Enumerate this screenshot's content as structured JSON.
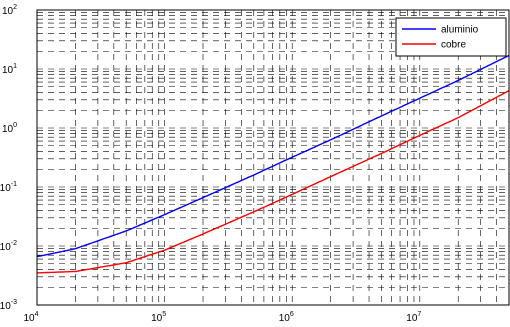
{
  "chart_data": {
    "type": "line",
    "xscale": "log",
    "yscale": "log",
    "xlim": [
      10000,
      50000000
    ],
    "ylim": [
      0.001,
      100
    ],
    "grid": true,
    "legend_position": "top-right",
    "x_ticks": [
      {
        "value": 10000,
        "base": "10",
        "exp": "4"
      },
      {
        "value": 100000,
        "base": "10",
        "exp": "5"
      },
      {
        "value": 1000000,
        "base": "10",
        "exp": "6"
      },
      {
        "value": 10000000,
        "base": "10",
        "exp": "7"
      }
    ],
    "y_ticks": [
      {
        "value": 0.001,
        "base": "10",
        "exp": "-3"
      },
      {
        "value": 0.01,
        "base": "10",
        "exp": "-2"
      },
      {
        "value": 0.1,
        "base": "10",
        "exp": "-1"
      },
      {
        "value": 1,
        "base": "10",
        "exp": "0"
      },
      {
        "value": 10,
        "base": "10",
        "exp": "1"
      },
      {
        "value": 100,
        "base": "10",
        "exp": "2"
      }
    ],
    "series": [
      {
        "name": "aluminio",
        "color": "#0000ff",
        "x": [
          10000,
          20000,
          50000,
          100000,
          200000,
          500000,
          1000000,
          2000000,
          5000000,
          10000000,
          20000000,
          50000000
        ],
        "y": [
          0.0066,
          0.009,
          0.018,
          0.034,
          0.066,
          0.16,
          0.32,
          0.63,
          1.6,
          3.2,
          6.4,
          17
        ]
      },
      {
        "name": "cobre",
        "color": "#ff0000",
        "x": [
          10000,
          20000,
          50000,
          100000,
          200000,
          500000,
          1000000,
          2000000,
          5000000,
          10000000,
          20000000,
          50000000
        ],
        "y": [
          0.0035,
          0.0037,
          0.0052,
          0.0085,
          0.016,
          0.038,
          0.075,
          0.15,
          0.37,
          0.75,
          1.5,
          4.3
        ]
      }
    ]
  }
}
